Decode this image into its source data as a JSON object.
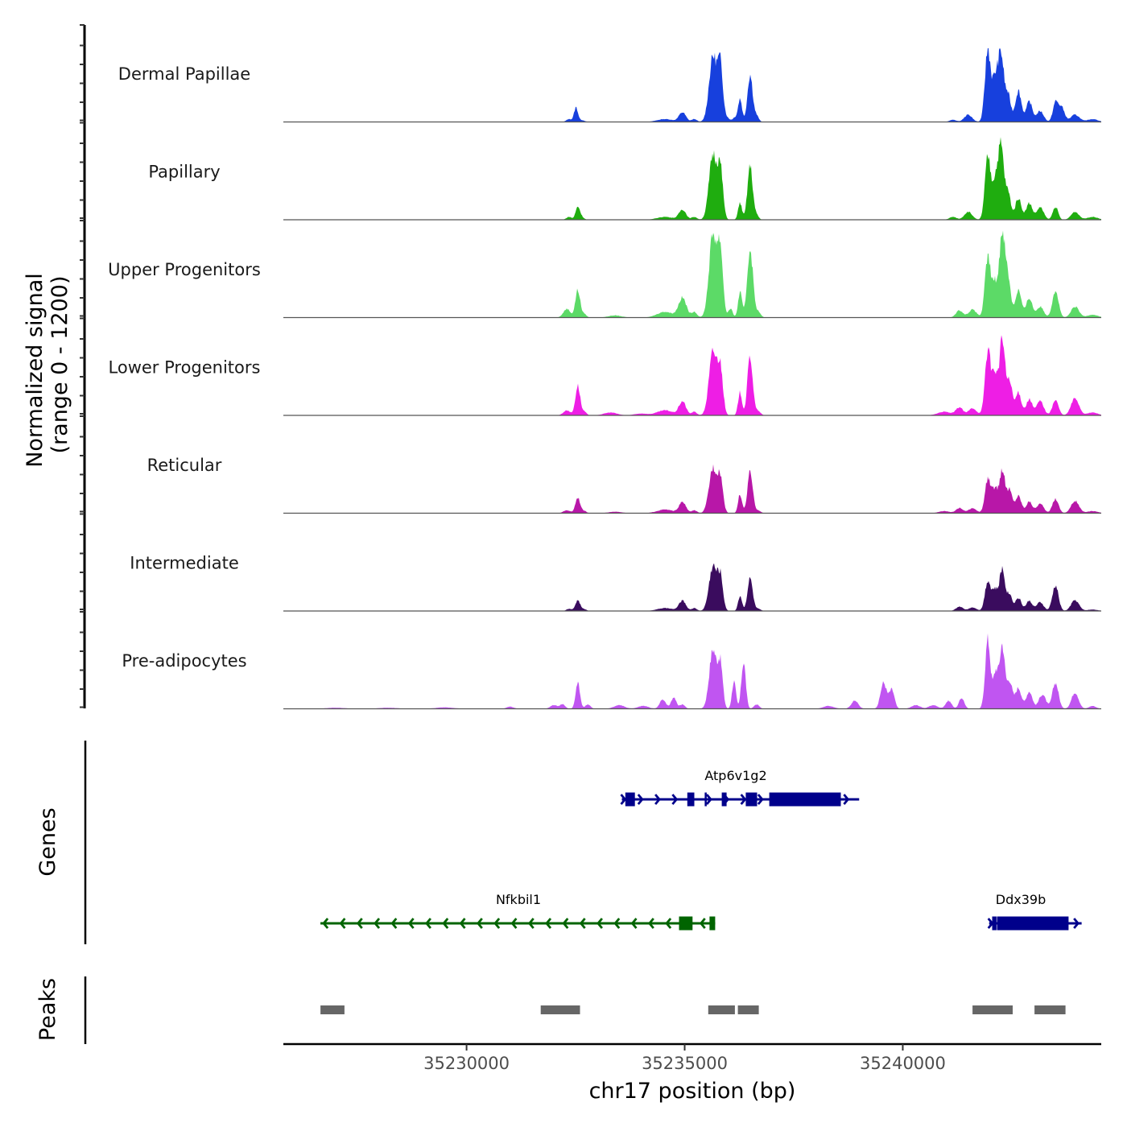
{
  "chart_data": {
    "type": "area",
    "title": "",
    "chromosome": "chr17",
    "xlabel": "chr17 position (bp)",
    "ylabel": "Normalized signal\n(range 0 - 1200)",
    "ylabel_lines": [
      "Normalized signal",
      "(range 0 - 1200)"
    ],
    "ylim": [
      0,
      1200
    ],
    "xlim": [
      35225800,
      35244550
    ],
    "x_ticks": [
      35230000,
      35235000,
      35240000
    ],
    "x_tick_labels": [
      "35230000",
      "35235000",
      "35240000"
    ],
    "grid": false,
    "tracks": [
      {
        "name": "Dermal Papillae",
        "color": "#1740DD",
        "peaks": [
          [
            35232350,
            40,
            60
          ],
          [
            35232510,
            200,
            45
          ],
          [
            35232650,
            25,
            60
          ],
          [
            35234550,
            40,
            180
          ],
          [
            35234950,
            130,
            80
          ],
          [
            35235220,
            40,
            60
          ],
          [
            35235650,
            900,
            90
          ],
          [
            35235820,
            720,
            60
          ],
          [
            35235980,
            50,
            60
          ],
          [
            35236150,
            60,
            50
          ],
          [
            35236270,
            320,
            45
          ],
          [
            35236500,
            650,
            60
          ],
          [
            35236650,
            80,
            50
          ],
          [
            35241150,
            30,
            80
          ],
          [
            35241500,
            100,
            90
          ],
          [
            35241950,
            1000,
            65
          ],
          [
            35242110,
            500,
            60
          ],
          [
            35242250,
            940,
            70
          ],
          [
            35242420,
            350,
            60
          ],
          [
            35242650,
            430,
            70
          ],
          [
            35242900,
            280,
            70
          ],
          [
            35243150,
            150,
            80
          ],
          [
            35243500,
            260,
            60
          ],
          [
            35243640,
            200,
            70
          ],
          [
            35243950,
            100,
            100
          ],
          [
            35244350,
            40,
            120
          ]
        ]
      },
      {
        "name": "Papillary",
        "color": "#1FAD0F",
        "peaks": [
          [
            35232350,
            40,
            60
          ],
          [
            35232550,
            180,
            50
          ],
          [
            35232650,
            30,
            50
          ],
          [
            35234550,
            40,
            180
          ],
          [
            35234950,
            140,
            80
          ],
          [
            35235220,
            40,
            60
          ],
          [
            35235650,
            900,
            90
          ],
          [
            35235820,
            640,
            60
          ],
          [
            35236270,
            230,
            45
          ],
          [
            35236500,
            740,
            60
          ],
          [
            35236650,
            60,
            50
          ],
          [
            35241150,
            40,
            80
          ],
          [
            35241500,
            110,
            90
          ],
          [
            35241950,
            870,
            65
          ],
          [
            35242110,
            450,
            60
          ],
          [
            35242250,
            1020,
            70
          ],
          [
            35242420,
            350,
            60
          ],
          [
            35242650,
            300,
            70
          ],
          [
            35242900,
            230,
            70
          ],
          [
            35243150,
            170,
            80
          ],
          [
            35243500,
            180,
            60
          ],
          [
            35243950,
            110,
            90
          ],
          [
            35244350,
            40,
            120
          ]
        ]
      },
      {
        "name": "Upper Progenitors",
        "color": "#5CDA67",
        "peaks": [
          [
            35232300,
            120,
            80
          ],
          [
            35232550,
            380,
            55
          ],
          [
            35232700,
            50,
            50
          ],
          [
            35233400,
            30,
            150
          ],
          [
            35234550,
            80,
            180
          ],
          [
            35234950,
            270,
            90
          ],
          [
            35235220,
            80,
            60
          ],
          [
            35235650,
            1150,
            90
          ],
          [
            35235820,
            860,
            60
          ],
          [
            35236050,
            120,
            50
          ],
          [
            35236270,
            350,
            45
          ],
          [
            35236500,
            950,
            65
          ],
          [
            35236680,
            80,
            60
          ],
          [
            35241300,
            100,
            80
          ],
          [
            35241600,
            110,
            90
          ],
          [
            35241950,
            830,
            65
          ],
          [
            35242110,
            450,
            60
          ],
          [
            35242280,
            1200,
            65
          ],
          [
            35242420,
            500,
            60
          ],
          [
            35242650,
            380,
            70
          ],
          [
            35242900,
            270,
            70
          ],
          [
            35243150,
            150,
            80
          ],
          [
            35243500,
            380,
            70
          ],
          [
            35243950,
            150,
            90
          ],
          [
            35244350,
            40,
            120
          ]
        ]
      },
      {
        "name": "Lower Progenitors",
        "color": "#EE1EE5",
        "peaks": [
          [
            35232300,
            70,
            80
          ],
          [
            35232550,
            410,
            55
          ],
          [
            35232700,
            50,
            50
          ],
          [
            35233300,
            40,
            150
          ],
          [
            35234000,
            25,
            150
          ],
          [
            35234550,
            70,
            180
          ],
          [
            35234950,
            190,
            80
          ],
          [
            35235220,
            50,
            60
          ],
          [
            35235650,
            880,
            90
          ],
          [
            35235820,
            600,
            60
          ],
          [
            35236270,
            320,
            45
          ],
          [
            35236500,
            820,
            60
          ],
          [
            35236680,
            60,
            60
          ],
          [
            35240950,
            50,
            150
          ],
          [
            35241300,
            110,
            80
          ],
          [
            35241600,
            100,
            90
          ],
          [
            35241950,
            900,
            65
          ],
          [
            35242110,
            560,
            60
          ],
          [
            35242280,
            1050,
            65
          ],
          [
            35242450,
            450,
            60
          ],
          [
            35242650,
            310,
            70
          ],
          [
            35242900,
            220,
            70
          ],
          [
            35243150,
            200,
            80
          ],
          [
            35243500,
            210,
            70
          ],
          [
            35243950,
            240,
            90
          ],
          [
            35244350,
            40,
            120
          ]
        ]
      },
      {
        "name": "Reticular",
        "color": "#B817A8",
        "peaks": [
          [
            35232300,
            40,
            80
          ],
          [
            35232550,
            220,
            55
          ],
          [
            35232700,
            30,
            50
          ],
          [
            35233400,
            20,
            150
          ],
          [
            35234550,
            50,
            180
          ],
          [
            35234950,
            150,
            80
          ],
          [
            35235220,
            40,
            60
          ],
          [
            35235650,
            630,
            90
          ],
          [
            35235820,
            450,
            60
          ],
          [
            35236270,
            260,
            45
          ],
          [
            35236500,
            560,
            60
          ],
          [
            35236680,
            40,
            60
          ],
          [
            35240950,
            30,
            120
          ],
          [
            35241300,
            70,
            80
          ],
          [
            35241600,
            70,
            90
          ],
          [
            35241950,
            470,
            65
          ],
          [
            35242110,
            320,
            60
          ],
          [
            35242280,
            600,
            65
          ],
          [
            35242450,
            310,
            60
          ],
          [
            35242650,
            240,
            70
          ],
          [
            35242900,
            160,
            70
          ],
          [
            35243150,
            130,
            80
          ],
          [
            35243500,
            200,
            70
          ],
          [
            35243950,
            170,
            90
          ],
          [
            35244350,
            30,
            120
          ]
        ]
      },
      {
        "name": "Intermediate",
        "color": "#3A0C5E",
        "peaks": [
          [
            35232350,
            30,
            60
          ],
          [
            35232550,
            150,
            55
          ],
          [
            35232700,
            25,
            50
          ],
          [
            35234550,
            40,
            180
          ],
          [
            35234950,
            140,
            80
          ],
          [
            35235220,
            40,
            60
          ],
          [
            35235650,
            620,
            90
          ],
          [
            35235820,
            440,
            60
          ],
          [
            35236270,
            210,
            45
          ],
          [
            35236500,
            450,
            60
          ],
          [
            35236680,
            30,
            60
          ],
          [
            35241300,
            60,
            80
          ],
          [
            35241600,
            50,
            90
          ],
          [
            35241950,
            420,
            65
          ],
          [
            35242110,
            280,
            60
          ],
          [
            35242280,
            580,
            65
          ],
          [
            35242450,
            220,
            60
          ],
          [
            35242650,
            180,
            70
          ],
          [
            35242900,
            140,
            70
          ],
          [
            35243150,
            120,
            80
          ],
          [
            35243500,
            350,
            70
          ],
          [
            35243950,
            150,
            90
          ],
          [
            35244350,
            20,
            120
          ]
        ]
      },
      {
        "name": "Pre-adipocytes",
        "color": "#C055F1",
        "peaks": [
          [
            35227000,
            15,
            200
          ],
          [
            35228200,
            15,
            200
          ],
          [
            35229500,
            20,
            200
          ],
          [
            35231000,
            30,
            80
          ],
          [
            35232000,
            50,
            80
          ],
          [
            35232200,
            60,
            60
          ],
          [
            35232550,
            360,
            50
          ],
          [
            35232780,
            60,
            60
          ],
          [
            35233500,
            50,
            120
          ],
          [
            35234050,
            40,
            120
          ],
          [
            35234500,
            130,
            70
          ],
          [
            35234750,
            160,
            60
          ],
          [
            35234950,
            60,
            60
          ],
          [
            35235650,
            820,
            85
          ],
          [
            35235820,
            580,
            55
          ],
          [
            35236130,
            380,
            45
          ],
          [
            35236350,
            650,
            50
          ],
          [
            35236650,
            60,
            60
          ],
          [
            35238300,
            40,
            120
          ],
          [
            35238900,
            110,
            80
          ],
          [
            35239560,
            360,
            70
          ],
          [
            35239750,
            260,
            60
          ],
          [
            35240300,
            50,
            100
          ],
          [
            35240700,
            50,
            100
          ],
          [
            35241050,
            110,
            70
          ],
          [
            35241350,
            150,
            60
          ],
          [
            35241950,
            960,
            60
          ],
          [
            35242130,
            500,
            55
          ],
          [
            35242280,
            880,
            60
          ],
          [
            35242450,
            380,
            60
          ],
          [
            35242650,
            290,
            70
          ],
          [
            35242900,
            240,
            70
          ],
          [
            35243200,
            200,
            80
          ],
          [
            35243500,
            360,
            70
          ],
          [
            35243950,
            230,
            80
          ],
          [
            35244350,
            40,
            80
          ]
        ]
      }
    ],
    "genes": [
      {
        "name": "Atp6v1g2",
        "strand": "+",
        "color": "#00008B",
        "start": 35233560,
        "end": 35239000,
        "exons": [
          [
            35233640,
            35233860
          ],
          [
            35235060,
            35235220
          ],
          [
            35235460,
            35235500
          ],
          [
            35235850,
            35235960
          ],
          [
            35236400,
            35236660
          ],
          [
            35236940,
            35238580
          ]
        ]
      },
      {
        "name": "Nfkbil1",
        "strand": "-",
        "color": "#006400",
        "start": 35226650,
        "end": 35235700,
        "exons": [
          [
            35234870,
            35235180
          ],
          [
            35235570,
            35235700
          ]
        ]
      },
      {
        "name": "Ddx39b",
        "strand": "+",
        "color": "#00008B",
        "start": 35241980,
        "end": 35244100,
        "exons": [
          [
            35242050,
            35242150
          ],
          [
            35242160,
            35243800
          ]
        ]
      }
    ],
    "peak_regions": [
      [
        35226650,
        35227200
      ],
      [
        35231700,
        35232600
      ],
      [
        35235540,
        35236150
      ],
      [
        35236220,
        35236700
      ],
      [
        35241600,
        35242520
      ],
      [
        35243020,
        35243730
      ]
    ],
    "panel_labels": {
      "genes": "Genes",
      "peaks": "Peaks"
    }
  }
}
